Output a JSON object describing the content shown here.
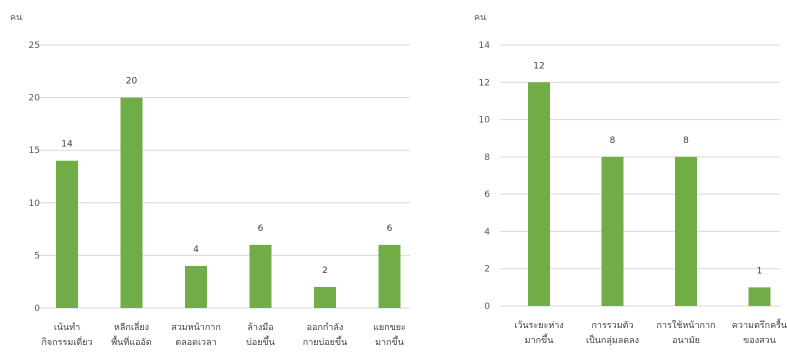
{
  "chart_data": [
    {
      "type": "bar",
      "title": "",
      "ylabel": "คน",
      "xlabel": "",
      "ylim": [
        0,
        25
      ],
      "yticks": [
        0,
        5,
        10,
        15,
        20,
        25
      ],
      "grid": true,
      "bar_color": "#70ad47",
      "categories": [
        [
          "เน้นทำ",
          "กิจกรรมเดี่ยว"
        ],
        [
          "หลีกเลี่ยง",
          "พื้นที่แออัด"
        ],
        [
          "สวมหน้ากาก",
          "ตลอดเวลา"
        ],
        [
          "ล้างมือ",
          "บ่อยขึ้น"
        ],
        [
          "ออกกำลัง",
          "กายบ่อยขึ้น"
        ],
        [
          "แยกขยะ",
          "มากขึ้น"
        ]
      ],
      "values": [
        14,
        20,
        4,
        6,
        2,
        6
      ]
    },
    {
      "type": "bar",
      "title": "",
      "ylabel": "คน",
      "xlabel": "",
      "ylim": [
        0,
        14
      ],
      "yticks": [
        0,
        2,
        4,
        6,
        8,
        10,
        12,
        14
      ],
      "grid": true,
      "bar_color": "#70ad47",
      "categories": [
        [
          "เว้นระยะห่าง",
          "มากขึ้น"
        ],
        [
          "การรวมตัว",
          "เป็นกลุ่มลดลง"
        ],
        [
          "การใช้หน้ากาก",
          "อนามัย"
        ],
        [
          "ความตรึกครื้น",
          "ของสวน"
        ]
      ],
      "values": [
        12,
        8,
        8,
        1
      ]
    }
  ]
}
